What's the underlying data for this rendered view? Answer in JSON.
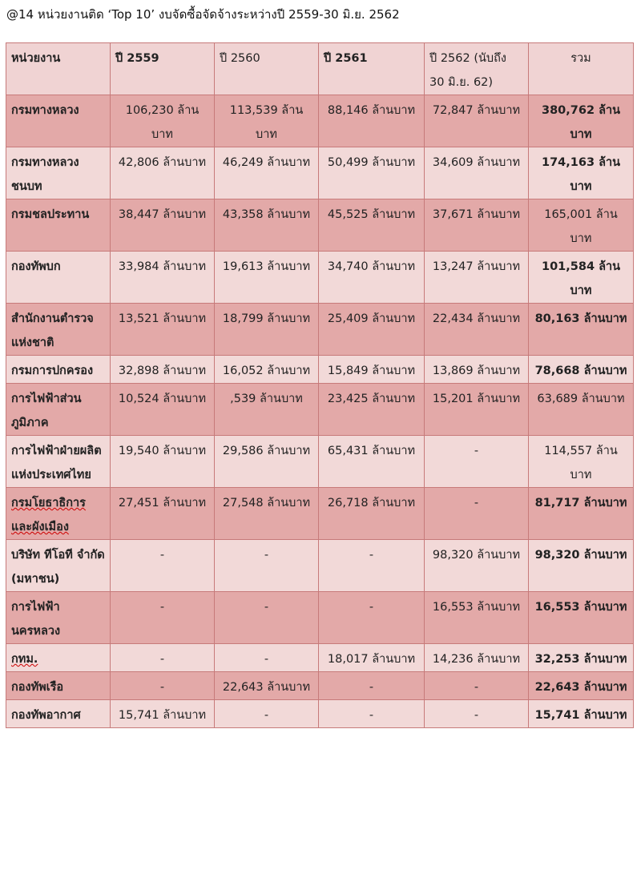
{
  "caption": "@14 หน่วยงานติด ‘Top 10’ งบจัดซื้อจัดจ้างระหว่างปี 2559-30 มิ.ย. 2562",
  "table": {
    "headers": [
      "หน่วยงาน",
      "ปี 2559",
      "ปี 2560",
      "ปี 2561",
      "ปี 2562 (นับถึง 30 มิ.ย. 62)",
      "รวม"
    ],
    "rows": [
      {
        "name": "กรมทางหลวง",
        "y2559": "106,230 ล้านบาท",
        "y2560": "113,539 ล้านบาท",
        "y2561": "88,146 ล้านบาท",
        "y2562": "72,847 ล้านบาท",
        "total": "380,762 ล้านบาท"
      },
      {
        "name": "กรมทางหลวงชนบท",
        "y2559": "42,806 ล้านบาท",
        "y2560": "46,249 ล้านบาท",
        "y2561": "50,499 ล้านบาท",
        "y2562": "34,609 ล้านบาท",
        "total": "174,163 ล้านบาท"
      },
      {
        "name": "กรมชลประทาน",
        "y2559": "38,447 ล้านบาท",
        "y2560": "43,358 ล้านบาท",
        "y2561": "45,525 ล้านบาท",
        "y2562": "37,671 ล้านบาท",
        "total": "165,001 ล้านบาท"
      },
      {
        "name": "กองทัพบก",
        "y2559": "33,984 ล้านบาท",
        "y2560": "19,613 ล้านบาท",
        "y2561": "34,740 ล้านบาท",
        "y2562": "13,247 ล้านบาท",
        "total": "101,584 ล้านบาท"
      },
      {
        "name": "สำนักงานตำรวจแห่งชาติ",
        "y2559": "13,521 ล้านบาท",
        "y2560": "18,799 ล้านบาท",
        "y2561": "25,409 ล้านบาท",
        "y2562": "22,434 ล้านบาท",
        "total": "80,163 ล้านบาท"
      },
      {
        "name": "กรมการปกครอง",
        "y2559": "32,898 ล้านบาท",
        "y2560": "16,052 ล้านบาท",
        "y2561": "15,849 ล้านบาท",
        "y2562": "13,869 ล้านบาท",
        "total": "78,668 ล้านบาท"
      },
      {
        "name": "การไฟฟ้าส่วนภูมิภาค",
        "y2559": "10,524 ล้านบาท",
        "y2560": ",539 ล้านบาท",
        "y2561": "23,425 ล้านบาท",
        "y2562": "15,201 ล้านบาท",
        "total": "63,689 ล้านบาท"
      },
      {
        "name": "การไฟฟ้าฝ่ายผลิตแห่งประเทศไทย",
        "y2559": "19,540 ล้านบาท",
        "y2560": "29,586 ล้านบาท",
        "y2561": "65,431 ล้านบาท",
        "y2562": "-",
        "total": "114,557 ล้านบาท"
      },
      {
        "name": "กรมโยธาธิการและผังเมือง",
        "y2559": "27,451 ล้านบาท",
        "y2560": "27,548 ล้านบาท",
        "y2561": "26,718 ล้านบาท",
        "y2562": "-",
        "total": "81,717 ล้านบาท"
      },
      {
        "name": "บริษัท ทีโอที จำกัด (มหาชน)",
        "y2559": "-",
        "y2560": "-",
        "y2561": "-",
        "y2562": "98,320 ล้านบาท",
        "total": "98,320 ล้านบาท"
      },
      {
        "name": "การไฟฟ้านครหลวง",
        "y2559": "-",
        "y2560": "-",
        "y2561": "-",
        "y2562": "16,553 ล้านบาท",
        "total": "16,553 ล้านบาท"
      },
      {
        "name": "กทม.",
        "y2559": "-",
        "y2560": "-",
        "y2561": "18,017 ล้านบาท",
        "y2562": "14,236 ล้านบาท",
        "total": "32,253 ล้านบาท"
      },
      {
        "name": "กองทัพเรือ",
        "y2559": "-",
        "y2560": "22,643 ล้านบาท",
        "y2561": "-",
        "y2562": "-",
        "total": "22,643 ล้านบาท"
      },
      {
        "name": "กองทัพอากาศ",
        "y2559": "15,741 ล้านบาท",
        "y2560": "-",
        "y2561": "-",
        "y2562": "-",
        "total": "15,741 ล้านบาท"
      }
    ]
  },
  "colors": {
    "header_bg": "#f0d3d3",
    "row_dark": "#e3a9a8",
    "row_light": "#f2d9d8",
    "border": "#c77a7a"
  }
}
